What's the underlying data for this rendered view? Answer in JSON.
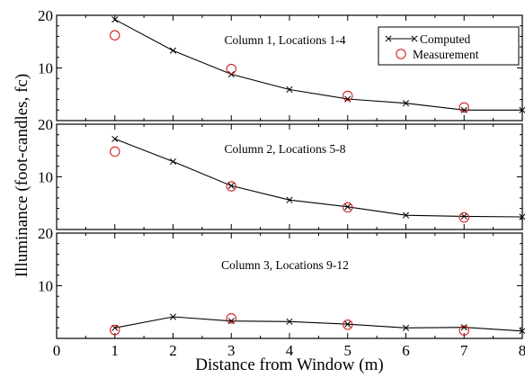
{
  "chart_data": {
    "type": "line",
    "xlabel": "Distance from Window (m)",
    "ylabel": "Illuminance (foot-candles, fc)",
    "xlim": [
      0,
      8
    ],
    "x_ticks": [
      "0",
      "1",
      "2",
      "3",
      "4",
      "5",
      "6",
      "7",
      "8"
    ],
    "legend": {
      "position": "top-right of top panel",
      "entries": [
        {
          "label": "Computed",
          "marker": "x",
          "color": "#000000"
        },
        {
          "label": "Measurement",
          "marker": "open-circle",
          "color": "#d42020"
        }
      ]
    },
    "panels": [
      {
        "title": "Column 1, Locations 1-4",
        "ylim": [
          0,
          20
        ],
        "y_ticks": [
          "10",
          "20"
        ],
        "computed": {
          "x": [
            1,
            2,
            3,
            4,
            5,
            6,
            7,
            8
          ],
          "y": [
            19.2,
            13.3,
            8.8,
            5.9,
            4.1,
            3.3,
            2.0,
            2.0
          ]
        },
        "measurement": {
          "x": [
            1,
            3,
            5,
            7
          ],
          "y": [
            16.2,
            9.8,
            4.7,
            2.5
          ]
        }
      },
      {
        "title": "Column 2, Locations 5-8",
        "ylim": [
          0,
          20
        ],
        "y_ticks": [
          "10",
          "20"
        ],
        "computed": {
          "x": [
            1,
            2,
            3,
            4,
            5,
            6,
            7,
            8
          ],
          "y": [
            17.2,
            12.9,
            8.3,
            5.6,
            4.3,
            2.7,
            2.5,
            2.4
          ]
        },
        "measurement": {
          "x": [
            1,
            3,
            5,
            7
          ],
          "y": [
            14.8,
            8.2,
            4.2,
            2.3
          ]
        }
      },
      {
        "title": "Column 3, Locations 9-12",
        "ylim": [
          0,
          20
        ],
        "y_ticks": [
          "10",
          "20"
        ],
        "computed": {
          "x": [
            1,
            2,
            3,
            4,
            5,
            6,
            7,
            8
          ],
          "y": [
            2.0,
            4.1,
            3.3,
            3.2,
            2.7,
            2.0,
            2.1,
            1.4
          ]
        },
        "measurement": {
          "x": [
            1,
            3,
            5,
            7
          ],
          "y": [
            1.6,
            3.8,
            2.6,
            1.5
          ]
        }
      }
    ]
  },
  "colors": {
    "computed": "#000000",
    "measurement": "#d42020",
    "axis": "#000000"
  }
}
